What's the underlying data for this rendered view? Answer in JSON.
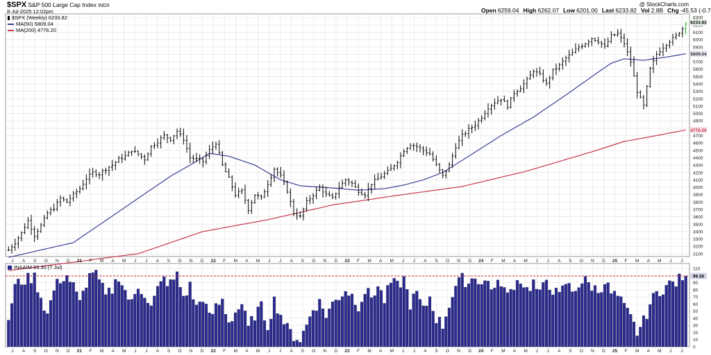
{
  "header": {
    "symbol": "$SPX",
    "description": "S&P 500 Large Cap Index",
    "exchange": "INDX",
    "datetime": "8-Jul-2025 12:02pm",
    "copyright": "@ StockCharts.com",
    "ohlc": [
      {
        "label": "Open",
        "value": "6259.04"
      },
      {
        "label": "High",
        "value": "6262.07"
      },
      {
        "label": "Low",
        "value": "6201.00"
      },
      {
        "label": "Last",
        "value": "6233.82"
      },
      {
        "label": "Chg",
        "value": "-45.53 (-0.73%)"
      }
    ],
    "volume": "2.8B",
    "volume_prefix": "Vol"
  },
  "legend": {
    "price": "$SPX (Weekly) 6233.82",
    "ma50": "MA(50) 5809.04",
    "ma200": "MA(200) 4776.20",
    "indicator": "INAAIM 99.30 (7 Jul)"
  },
  "colors": {
    "ma50": "#3a3f97",
    "ma200": "#c8374f",
    "indicator_fill": "#2a2a8c",
    "indicator_edge": "#1a1a5a",
    "ref_line": "#cc2222",
    "grid": "#e4e4e4",
    "last_up": "#22aa22"
  },
  "chart_data": [
    {
      "type": "ohlc",
      "title": "$SPX S&P 500 Large Cap Index INDX",
      "y_ticks": [
        3100,
        3200,
        3300,
        3400,
        3500,
        3600,
        3700,
        3800,
        3900,
        4000,
        4100,
        4200,
        4300,
        4400,
        4500,
        4600,
        4700,
        4800,
        4900,
        5000,
        5100,
        5200,
        5300,
        5400,
        5500,
        5600,
        5700,
        5800,
        5900,
        6000,
        6100,
        6200,
        6300
      ],
      "ylim": [
        3080,
        6330
      ],
      "x_month_labels": [
        "J",
        "A",
        "S",
        "O",
        "N",
        "D",
        "21",
        "F",
        "M",
        "A",
        "M",
        "J",
        "J",
        "A",
        "S",
        "O",
        "N",
        "D",
        "22",
        "F",
        "M",
        "A",
        "M",
        "J",
        "J",
        "A",
        "S",
        "O",
        "N",
        "D",
        "23",
        "F",
        "M",
        "A",
        "M",
        "J",
        "J",
        "A",
        "S",
        "O",
        "N",
        "D",
        "24",
        "F",
        "M",
        "A",
        "M",
        "J",
        "J",
        "A",
        "S",
        "O",
        "N",
        "D",
        "25",
        "F",
        "M",
        "A",
        "M",
        "J",
        "J"
      ],
      "x_range": [
        "2020-07",
        "2025-07"
      ],
      "close_anchors": [
        [
          0,
          3150
        ],
        [
          2,
          3250
        ],
        [
          4,
          3380
        ],
        [
          6,
          3550
        ],
        [
          8,
          3350
        ],
        [
          10,
          3480
        ],
        [
          12,
          3650
        ],
        [
          14,
          3720
        ],
        [
          16,
          3850
        ],
        [
          18,
          3800
        ],
        [
          20,
          3900
        ],
        [
          22,
          3980
        ],
        [
          24,
          4120
        ],
        [
          26,
          4200
        ],
        [
          28,
          4180
        ],
        [
          30,
          4250
        ],
        [
          32,
          4300
        ],
        [
          34,
          4380
        ],
        [
          36,
          4420
        ],
        [
          38,
          4500
        ],
        [
          40,
          4450
        ],
        [
          42,
          4380
        ],
        [
          44,
          4550
        ],
        [
          46,
          4620
        ],
        [
          48,
          4700
        ],
        [
          50,
          4650
        ],
        [
          52,
          4760
        ],
        [
          54,
          4650
        ],
        [
          56,
          4400
        ],
        [
          58,
          4380
        ],
        [
          60,
          4350
        ],
        [
          62,
          4500
        ],
        [
          64,
          4600
        ],
        [
          66,
          4300
        ],
        [
          68,
          4120
        ],
        [
          70,
          3900
        ],
        [
          72,
          3950
        ],
        [
          74,
          3700
        ],
        [
          76,
          3900
        ],
        [
          78,
          3850
        ],
        [
          80,
          4050
        ],
        [
          82,
          4250
        ],
        [
          84,
          4150
        ],
        [
          86,
          3950
        ],
        [
          88,
          3650
        ],
        [
          90,
          3600
        ],
        [
          92,
          3800
        ],
        [
          94,
          3900
        ],
        [
          96,
          4000
        ],
        [
          98,
          3900
        ],
        [
          100,
          3850
        ],
        [
          102,
          4000
        ],
        [
          104,
          4100
        ],
        [
          106,
          4050
        ],
        [
          108,
          3950
        ],
        [
          110,
          3900
        ],
        [
          112,
          4050
        ],
        [
          114,
          4120
        ],
        [
          116,
          4180
        ],
        [
          118,
          4250
        ],
        [
          120,
          4350
        ],
        [
          122,
          4500
        ],
        [
          124,
          4580
        ],
        [
          126,
          4550
        ],
        [
          128,
          4500
        ],
        [
          130,
          4450
        ],
        [
          132,
          4300
        ],
        [
          134,
          4150
        ],
        [
          136,
          4300
        ],
        [
          138,
          4550
        ],
        [
          140,
          4700
        ],
        [
          142,
          4780
        ],
        [
          144,
          4850
        ],
        [
          146,
          4950
        ],
        [
          148,
          5080
        ],
        [
          150,
          5150
        ],
        [
          152,
          5200
        ],
        [
          154,
          5100
        ],
        [
          156,
          5280
        ],
        [
          158,
          5350
        ],
        [
          160,
          5450
        ],
        [
          162,
          5580
        ],
        [
          164,
          5520
        ],
        [
          166,
          5400
        ],
        [
          168,
          5580
        ],
        [
          170,
          5650
        ],
        [
          172,
          5750
        ],
        [
          174,
          5820
        ],
        [
          176,
          5900
        ],
        [
          178,
          5950
        ],
        [
          180,
          6020
        ],
        [
          182,
          5980
        ],
        [
          184,
          5900
        ],
        [
          186,
          6050
        ],
        [
          188,
          6080
        ],
        [
          190,
          5950
        ],
        [
          192,
          5700
        ],
        [
          194,
          5300
        ],
        [
          196,
          5100
        ],
        [
          198,
          5600
        ],
        [
          200,
          5800
        ],
        [
          202,
          5900
        ],
        [
          204,
          5980
        ],
        [
          206,
          6050
        ],
        [
          208,
          6150
        ],
        [
          209,
          6233.82
        ]
      ],
      "ma50_anchors": [
        [
          0,
          3050
        ],
        [
          10,
          3150
        ],
        [
          20,
          3250
        ],
        [
          30,
          3550
        ],
        [
          40,
          3850
        ],
        [
          50,
          4150
        ],
        [
          56,
          4300
        ],
        [
          62,
          4460
        ],
        [
          68,
          4420
        ],
        [
          76,
          4300
        ],
        [
          84,
          4100
        ],
        [
          90,
          4020
        ],
        [
          100,
          3990
        ],
        [
          108,
          3960
        ],
        [
          116,
          3980
        ],
        [
          122,
          4030
        ],
        [
          128,
          4100
        ],
        [
          134,
          4200
        ],
        [
          142,
          4420
        ],
        [
          152,
          4700
        ],
        [
          162,
          4950
        ],
        [
          172,
          5250
        ],
        [
          182,
          5560
        ],
        [
          186,
          5680
        ],
        [
          190,
          5740
        ],
        [
          196,
          5720
        ],
        [
          204,
          5770
        ],
        [
          209,
          5809
        ]
      ],
      "ma200_anchors": [
        [
          0,
          2870
        ],
        [
          40,
          3100
        ],
        [
          60,
          3400
        ],
        [
          80,
          3560
        ],
        [
          100,
          3760
        ],
        [
          120,
          3890
        ],
        [
          140,
          4010
        ],
        [
          160,
          4220
        ],
        [
          180,
          4480
        ],
        [
          190,
          4620
        ],
        [
          200,
          4700
        ],
        [
          209,
          4776.2
        ]
      ],
      "last_label": "6233.82",
      "ma50_label": "5809.04",
      "ma200_label": "4776.20"
    },
    {
      "type": "bar",
      "title": "INAAIM 99.30 (7 Jul)",
      "y_ticks": [
        0,
        10,
        20,
        30,
        40,
        50,
        60,
        70,
        80,
        90,
        100,
        110
      ],
      "ylim": [
        0,
        115
      ],
      "reference_line": 99.3,
      "last_value": "99.30",
      "value_anchors": [
        [
          0,
          40
        ],
        [
          2,
          85
        ],
        [
          4,
          92
        ],
        [
          6,
          95
        ],
        [
          8,
          98
        ],
        [
          10,
          70
        ],
        [
          12,
          45
        ],
        [
          14,
          80
        ],
        [
          16,
          95
        ],
        [
          18,
          100
        ],
        [
          20,
          85
        ],
        [
          22,
          60
        ],
        [
          24,
          90
        ],
        [
          26,
          108
        ],
        [
          28,
          92
        ],
        [
          30,
          70
        ],
        [
          32,
          80
        ],
        [
          34,
          100
        ],
        [
          36,
          78
        ],
        [
          38,
          60
        ],
        [
          40,
          85
        ],
        [
          42,
          75
        ],
        [
          44,
          55
        ],
        [
          46,
          80
        ],
        [
          48,
          95
        ],
        [
          50,
          88
        ],
        [
          52,
          100
        ],
        [
          54,
          70
        ],
        [
          56,
          85
        ],
        [
          58,
          55
        ],
        [
          60,
          70
        ],
        [
          62,
          40
        ],
        [
          64,
          55
        ],
        [
          66,
          65
        ],
        [
          68,
          35
        ],
        [
          70,
          48
        ],
        [
          72,
          60
        ],
        [
          74,
          25
        ],
        [
          76,
          45
        ],
        [
          78,
          55
        ],
        [
          80,
          30
        ],
        [
          82,
          65
        ],
        [
          84,
          45
        ],
        [
          86,
          25
        ],
        [
          88,
          15
        ],
        [
          90,
          10
        ],
        [
          92,
          30
        ],
        [
          94,
          55
        ],
        [
          96,
          62
        ],
        [
          98,
          45
        ],
        [
          100,
          60
        ],
        [
          102,
          70
        ],
        [
          104,
          80
        ],
        [
          106,
          72
        ],
        [
          108,
          58
        ],
        [
          110,
          78
        ],
        [
          112,
          70
        ],
        [
          114,
          85
        ],
        [
          116,
          65
        ],
        [
          118,
          90
        ],
        [
          120,
          85
        ],
        [
          122,
          95
        ],
        [
          124,
          60
        ],
        [
          126,
          75
        ],
        [
          128,
          50
        ],
        [
          130,
          70
        ],
        [
          132,
          40
        ],
        [
          134,
          30
        ],
        [
          136,
          60
        ],
        [
          138,
          85
        ],
        [
          140,
          95
        ],
        [
          142,
          90
        ],
        [
          144,
          100
        ],
        [
          146,
          88
        ],
        [
          148,
          92
        ],
        [
          150,
          80
        ],
        [
          152,
          92
        ],
        [
          154,
          70
        ],
        [
          156,
          88
        ],
        [
          158,
          95
        ],
        [
          160,
          80
        ],
        [
          162,
          90
        ],
        [
          164,
          72
        ],
        [
          166,
          95
        ],
        [
          168,
          80
        ],
        [
          170,
          70
        ],
        [
          172,
          90
        ],
        [
          174,
          78
        ],
        [
          176,
          88
        ],
        [
          178,
          92
        ],
        [
          180,
          85
        ],
        [
          182,
          78
        ],
        [
          184,
          92
        ],
        [
          186,
          75
        ],
        [
          188,
          70
        ],
        [
          190,
          55
        ],
        [
          192,
          40
        ],
        [
          194,
          20
        ],
        [
          196,
          35
        ],
        [
          198,
          60
        ],
        [
          200,
          75
        ],
        [
          202,
          82
        ],
        [
          204,
          88
        ],
        [
          206,
          90
        ],
        [
          208,
          98
        ],
        [
          209,
          99.3
        ]
      ]
    }
  ]
}
